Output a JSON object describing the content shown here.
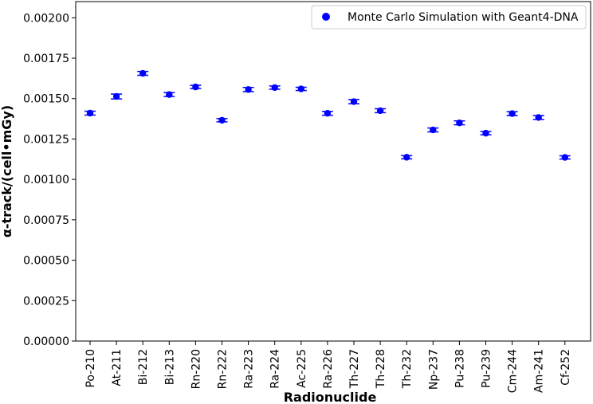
{
  "chart_data": {
    "type": "scatter",
    "title": "",
    "xlabel": "Radionuclide",
    "ylabel": "α-track/(cell•mGy)",
    "ylim": [
      0,
      0.0021
    ],
    "yticks": [
      "0.00000",
      "0.00025",
      "0.00050",
      "0.00075",
      "0.00100",
      "0.00125",
      "0.00150",
      "0.00175",
      "0.00200"
    ],
    "ytick_values": [
      0,
      0.00025,
      0.0005,
      0.00075,
      0.001,
      0.00125,
      0.0015,
      0.00175,
      0.002
    ],
    "grid": false,
    "legend": {
      "position": "top-right",
      "entries": [
        "Monte Carlo Simulation with Geant4-DNA"
      ]
    },
    "marker_color": "#0000ff",
    "categories": [
      "Po-210",
      "At-211",
      "Bi-212",
      "Bi-213",
      "Rn-220",
      "Rn-222",
      "Ra-223",
      "Ra-224",
      "Ac-225",
      "Ra-226",
      "Th-227",
      "Th-228",
      "Th-232",
      "Np-237",
      "Pu-238",
      "Pu-239",
      "Cm-244",
      "Am-241",
      "Cf-252"
    ],
    "series": [
      {
        "name": "Monte Carlo Simulation with Geant4-DNA",
        "values": [
          0.00141,
          0.001513,
          0.001656,
          0.001525,
          0.001572,
          0.001366,
          0.001556,
          0.001568,
          0.00156,
          0.001409,
          0.001481,
          0.001425,
          0.001137,
          0.001306,
          0.00135,
          0.001286,
          0.001407,
          0.001383,
          0.001136
        ],
        "errors": [
          1.2e-05,
          1.5e-05,
          1.2e-05,
          1.2e-05,
          1e-05,
          1e-05,
          1.3e-05,
          1e-05,
          1e-05,
          1.2e-05,
          1.3e-05,
          1.2e-05,
          1e-05,
          1.2e-05,
          1.2e-05,
          1e-05,
          1.2e-05,
          1.2e-05,
          1e-05
        ]
      }
    ]
  }
}
